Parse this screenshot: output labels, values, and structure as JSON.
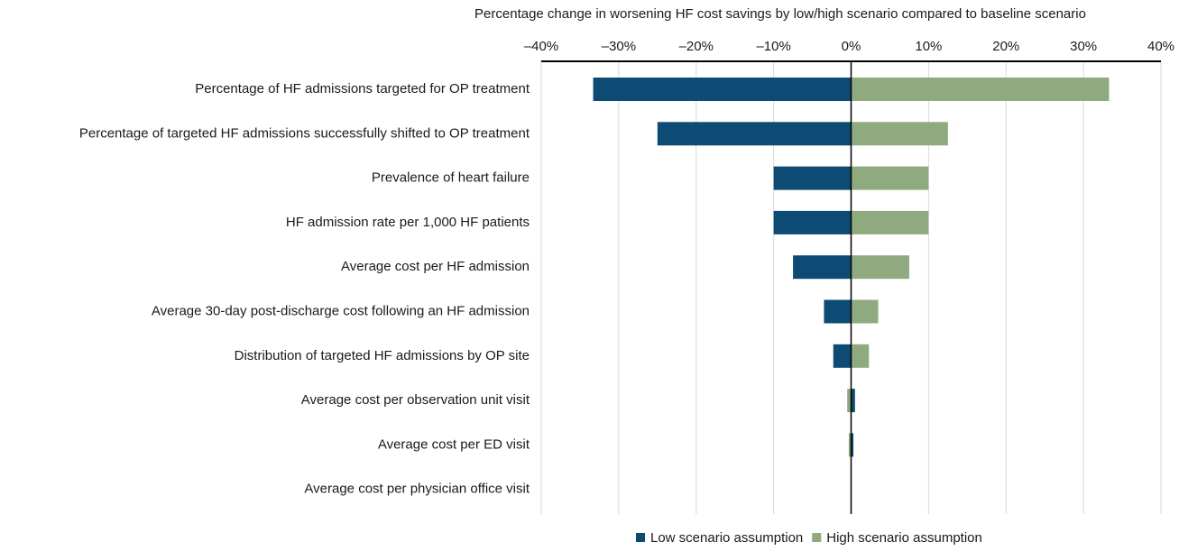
{
  "chart_data": {
    "type": "tornado",
    "title": "Percentage change in worsening HF cost savings by low/high scenario compared to baseline scenario",
    "categories": [
      "Percentage of HF admissions targeted for OP treatment",
      "Percentage of targeted HF admissions successfully shifted to OP treatment",
      "Prevalence of heart failure",
      "HF admission rate per 1,000 HF patients",
      "Average cost per HF admission",
      "Average 30-day post-discharge cost following an HF admission",
      "Distribution of targeted HF admissions by OP site",
      "Average cost per observation unit visit",
      "Average cost per ED visit",
      "Average cost per physician office visit"
    ],
    "series": [
      {
        "name": "Low scenario assumption",
        "color": "#0d4a74",
        "values": [
          -33.3,
          -25,
          -10,
          -10,
          -7.5,
          -3.5,
          -2.3,
          0.5,
          0.3,
          0
        ]
      },
      {
        "name": "High scenario assumption",
        "color": "#8faa7e",
        "values": [
          33.3,
          12.5,
          10,
          10,
          7.5,
          3.5,
          2.3,
          -0.5,
          -0.3,
          0
        ]
      }
    ],
    "xlim": [
      -40,
      40
    ],
    "xticks": [
      {
        "value": -40,
        "label": "–40%"
      },
      {
        "value": -30,
        "label": "–30%"
      },
      {
        "value": -20,
        "label": "–20%"
      },
      {
        "value": -10,
        "label": "–10%"
      },
      {
        "value": 0,
        "label": "0%"
      },
      {
        "value": 10,
        "label": "10%"
      },
      {
        "value": 20,
        "label": "20%"
      },
      {
        "value": 30,
        "label": "30%"
      },
      {
        "value": 40,
        "label": "40%"
      }
    ],
    "grid": true,
    "legend": "bottom"
  }
}
